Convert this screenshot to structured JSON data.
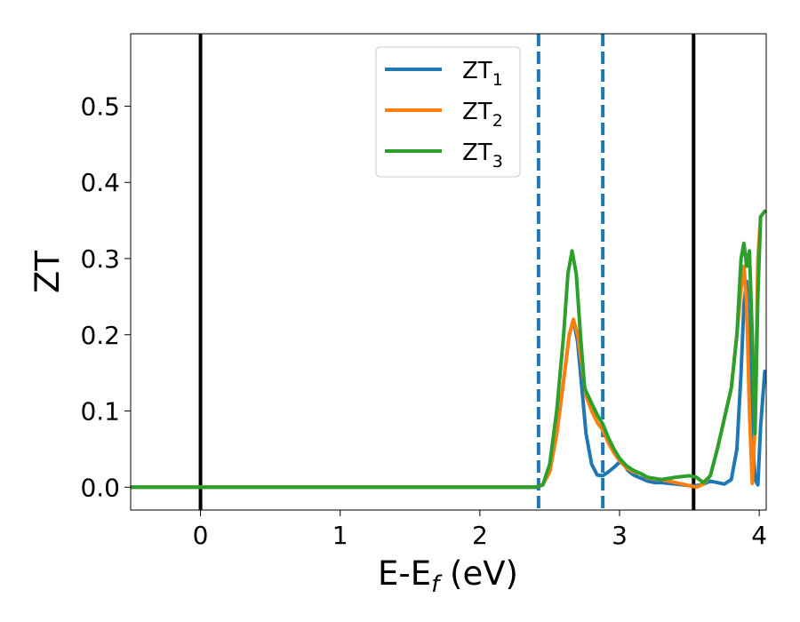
{
  "chart_data": {
    "type": "line",
    "title": "",
    "xlabel": {
      "main": "E-E",
      "sub": "f",
      "tail": " (eV)"
    },
    "ylabel": "ZT",
    "xlim": [
      -0.5,
      4.05
    ],
    "ylim": [
      -0.03,
      0.595
    ],
    "xticks": [
      0,
      1,
      2,
      3,
      4
    ],
    "yticks": [
      0.0,
      0.1,
      0.2,
      0.3,
      0.4,
      0.5
    ],
    "xtick_labels": [
      "0",
      "1",
      "2",
      "3",
      "4"
    ],
    "ytick_labels": [
      "0.0",
      "0.1",
      "0.2",
      "0.3",
      "0.4",
      "0.5"
    ],
    "grid": false,
    "legend_position": "top-center",
    "vlines_solid": [
      0.0,
      3.53
    ],
    "vlines_dashed": [
      2.42,
      2.88
    ],
    "vline_solid_color": "#000000",
    "vline_dashed_color": "#1f77b4",
    "series": [
      {
        "name": {
          "main": "ZT",
          "sub": "1"
        },
        "color": "#1f77b4",
        "x": [
          -0.5,
          2.3,
          2.4,
          2.45,
          2.5,
          2.55,
          2.6,
          2.64,
          2.67,
          2.7,
          2.73,
          2.76,
          2.8,
          2.84,
          2.88,
          2.92,
          2.96,
          3.0,
          3.03,
          3.06,
          3.1,
          3.15,
          3.2,
          3.25,
          3.3,
          3.4,
          3.5,
          3.55,
          3.6,
          3.65,
          3.7,
          3.75,
          3.8,
          3.84,
          3.87,
          3.89,
          3.91,
          3.93,
          3.95,
          3.97,
          3.99,
          4.01,
          4.04
        ],
        "y": [
          0.0,
          0.0,
          0.0,
          0.003,
          0.02,
          0.07,
          0.14,
          0.2,
          0.22,
          0.19,
          0.13,
          0.07,
          0.03,
          0.016,
          0.015,
          0.02,
          0.026,
          0.033,
          0.03,
          0.022,
          0.016,
          0.012,
          0.008,
          0.006,
          0.006,
          0.004,
          0.002,
          0.002,
          0.004,
          0.008,
          0.006,
          0.004,
          0.01,
          0.05,
          0.15,
          0.24,
          0.27,
          0.19,
          0.07,
          0.01,
          0.003,
          0.08,
          0.152
        ]
      },
      {
        "name": {
          "main": "ZT",
          "sub": "2"
        },
        "color": "#ff7f0e",
        "x": [
          -0.5,
          2.3,
          2.4,
          2.45,
          2.5,
          2.55,
          2.6,
          2.64,
          2.67,
          2.7,
          2.73,
          2.76,
          2.8,
          2.84,
          2.88,
          2.92,
          2.96,
          3.0,
          3.05,
          3.1,
          3.15,
          3.2,
          3.3,
          3.4,
          3.5,
          3.55,
          3.6,
          3.65,
          3.7,
          3.75,
          3.8,
          3.84,
          3.87,
          3.89,
          3.91,
          3.93,
          3.95,
          3.97,
          3.99,
          4.01,
          4.04
        ],
        "y": [
          0.0,
          0.0,
          0.0,
          0.003,
          0.02,
          0.07,
          0.14,
          0.2,
          0.22,
          0.2,
          0.16,
          0.12,
          0.1,
          0.085,
          0.075,
          0.058,
          0.045,
          0.035,
          0.025,
          0.02,
          0.018,
          0.012,
          0.01,
          0.006,
          0.002,
          0.0,
          0.004,
          0.015,
          0.05,
          0.09,
          0.13,
          0.2,
          0.26,
          0.29,
          0.24,
          0.1,
          0.005,
          0.08,
          0.3,
          0.355,
          0.362
        ]
      },
      {
        "name": {
          "main": "ZT",
          "sub": "3"
        },
        "color": "#2ca02c",
        "x": [
          -0.5,
          2.3,
          2.4,
          2.45,
          2.5,
          2.55,
          2.6,
          2.63,
          2.66,
          2.69,
          2.72,
          2.75,
          2.8,
          2.84,
          2.88,
          2.92,
          2.96,
          3.0,
          3.05,
          3.1,
          3.15,
          3.2,
          3.3,
          3.4,
          3.5,
          3.55,
          3.6,
          3.65,
          3.7,
          3.75,
          3.8,
          3.84,
          3.87,
          3.89,
          3.91,
          3.93,
          3.95,
          3.97,
          3.99,
          4.01,
          4.04
        ],
        "y": [
          0.0,
          0.0,
          0.0,
          0.003,
          0.03,
          0.1,
          0.2,
          0.28,
          0.31,
          0.28,
          0.2,
          0.13,
          0.11,
          0.095,
          0.083,
          0.065,
          0.05,
          0.038,
          0.028,
          0.022,
          0.018,
          0.013,
          0.01,
          0.013,
          0.015,
          0.013,
          0.006,
          0.015,
          0.05,
          0.09,
          0.13,
          0.2,
          0.3,
          0.32,
          0.29,
          0.31,
          0.2,
          0.07,
          0.25,
          0.355,
          0.362
        ]
      }
    ]
  }
}
